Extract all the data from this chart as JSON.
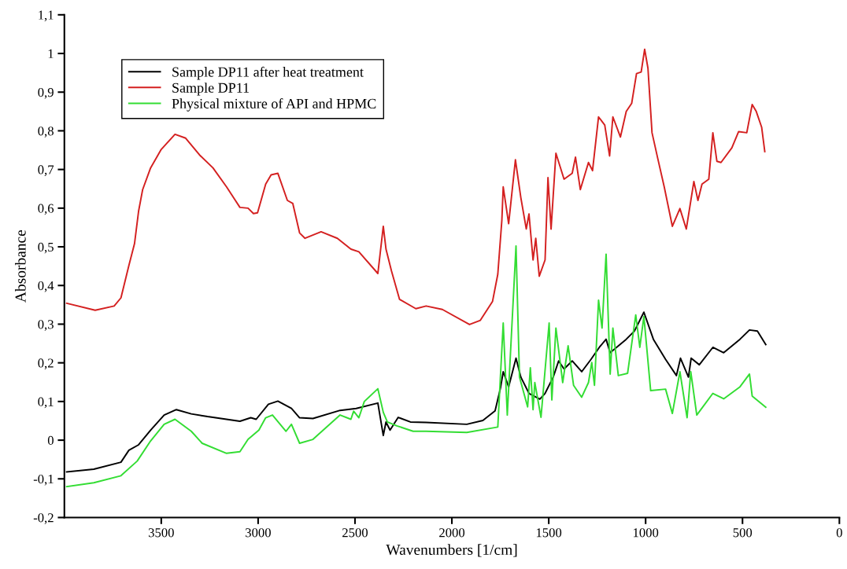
{
  "chart_data": {
    "type": "line",
    "xlabel": "Wavenumbers [1/cm]",
    "ylabel": "Absorbance",
    "xlim": [
      4000,
      0
    ],
    "xticks": [
      3500,
      3000,
      2500,
      2000,
      1500,
      1000,
      500,
      0
    ],
    "ylim": [
      -0.2,
      1.1
    ],
    "yticks": [
      {
        "value": -0.2,
        "label": "-0,2"
      },
      {
        "value": -0.1,
        "label": "-0,1"
      },
      0,
      {
        "value": 0.1,
        "label": "0,1"
      },
      {
        "value": 0.2,
        "label": "0,2"
      },
      {
        "value": 0.3,
        "label": "0,3"
      },
      {
        "value": 0.4,
        "label": "0,4"
      },
      {
        "value": 0.5,
        "label": "0,5"
      },
      {
        "value": 0.6,
        "label": "0,6"
      },
      {
        "value": 0.7,
        "label": "0,7"
      },
      {
        "value": 0.8,
        "label": "0,8"
      },
      {
        "value": 0.9,
        "label": "0,9"
      },
      1,
      {
        "value": 1.1,
        "label": "1,1"
      }
    ],
    "grid": false,
    "legend": "top left",
    "marker": "none",
    "line_style": "solid",
    "series": [
      {
        "name": "Sample DP11 after heat treatment",
        "color": "#000000",
        "x": [
          3988,
          3848,
          3708,
          3667,
          3617,
          3555,
          3485,
          3422,
          3345,
          3261,
          3094,
          3038,
          3010,
          2947,
          2898,
          2828,
          2786,
          2717,
          2577,
          2494,
          2382,
          2354,
          2340,
          2319,
          2277,
          2214,
          2133,
          1923,
          1840,
          1777,
          1749,
          1735,
          1707,
          1669,
          1644,
          1602,
          1546,
          1519,
          1477,
          1449,
          1421,
          1379,
          1330,
          1282,
          1239,
          1204,
          1183,
          1100,
          1058,
          1009,
          960,
          897,
          841,
          820,
          779,
          765,
          723,
          653,
          597,
          513,
          464,
          423,
          380
        ],
        "values": [
          -0.082,
          -0.075,
          -0.057,
          -0.026,
          -0.012,
          0.026,
          0.065,
          0.079,
          0.068,
          0.061,
          0.049,
          0.058,
          0.054,
          0.093,
          0.101,
          0.082,
          0.058,
          0.056,
          0.077,
          0.082,
          0.096,
          0.012,
          0.047,
          0.026,
          0.059,
          0.047,
          0.046,
          0.041,
          0.051,
          0.076,
          0.135,
          0.177,
          0.138,
          0.212,
          0.163,
          0.121,
          0.106,
          0.121,
          0.163,
          0.205,
          0.184,
          0.205,
          0.177,
          0.209,
          0.24,
          0.261,
          0.226,
          0.261,
          0.282,
          0.331,
          0.261,
          0.209,
          0.167,
          0.212,
          0.163,
          0.212,
          0.195,
          0.24,
          0.226,
          0.261,
          0.285,
          0.282,
          0.247
        ]
      },
      {
        "name": "Sample DP11",
        "color": "#d42020",
        "x": [
          3988,
          3841,
          3743,
          3708,
          3667,
          3638,
          3617,
          3596,
          3555,
          3500,
          3429,
          3374,
          3303,
          3233,
          3163,
          3094,
          3052,
          3024,
          3003,
          2961,
          2933,
          2898,
          2849,
          2821,
          2786,
          2758,
          2675,
          2591,
          2521,
          2480,
          2382,
          2354,
          2340,
          2312,
          2270,
          2186,
          2133,
          2049,
          1909,
          1853,
          1790,
          1763,
          1742,
          1735,
          1707,
          1672,
          1644,
          1616,
          1602,
          1581,
          1567,
          1549,
          1519,
          1504,
          1488,
          1463,
          1421,
          1379,
          1362,
          1337,
          1295,
          1274,
          1243,
          1211,
          1186,
          1169,
          1130,
          1100,
          1072,
          1047,
          1023,
          1005,
          988,
          967,
          939,
          904,
          862,
          823,
          790,
          751,
          730,
          709,
          674,
          653,
          632,
          611,
          555,
          520,
          478,
          450,
          429,
          401,
          385
        ],
        "values": [
          0.354,
          0.336,
          0.347,
          0.368,
          0.452,
          0.508,
          0.592,
          0.648,
          0.704,
          0.752,
          0.791,
          0.781,
          0.738,
          0.704,
          0.655,
          0.602,
          0.6,
          0.586,
          0.588,
          0.662,
          0.686,
          0.69,
          0.62,
          0.612,
          0.536,
          0.522,
          0.539,
          0.522,
          0.494,
          0.487,
          0.431,
          0.553,
          0.494,
          0.438,
          0.364,
          0.34,
          0.347,
          0.338,
          0.299,
          0.31,
          0.359,
          0.429,
          0.569,
          0.655,
          0.56,
          0.725,
          0.627,
          0.546,
          0.585,
          0.466,
          0.522,
          0.424,
          0.466,
          0.679,
          0.546,
          0.742,
          0.675,
          0.69,
          0.732,
          0.648,
          0.718,
          0.697,
          0.836,
          0.815,
          0.735,
          0.836,
          0.784,
          0.85,
          0.871,
          0.948,
          0.952,
          1.011,
          0.962,
          0.795,
          0.732,
          0.655,
          0.553,
          0.599,
          0.546,
          0.669,
          0.62,
          0.662,
          0.675,
          0.795,
          0.721,
          0.718,
          0.756,
          0.798,
          0.795,
          0.868,
          0.85,
          0.809,
          0.746
        ]
      },
      {
        "name": "Physical mixture of API and HPMC",
        "color": "#33dd33",
        "x": [
          3988,
          3848,
          3708,
          3624,
          3555,
          3485,
          3429,
          3345,
          3289,
          3163,
          3094,
          3052,
          2996,
          2961,
          2926,
          2856,
          2828,
          2786,
          2717,
          2577,
          2521,
          2507,
          2480,
          2452,
          2382,
          2354,
          2333,
          2284,
          2200,
          2133,
          1923,
          1763,
          1735,
          1714,
          1669,
          1651,
          1609,
          1595,
          1581,
          1572,
          1540,
          1498,
          1484,
          1463,
          1428,
          1400,
          1372,
          1330,
          1295,
          1278,
          1264,
          1243,
          1225,
          1204,
          1183,
          1169,
          1141,
          1093,
          1051,
          1030,
          1009,
          974,
          897,
          862,
          823,
          786,
          767,
          736,
          653,
          597,
          513,
          464,
          450,
          380
        ],
        "values": [
          -0.12,
          -0.11,
          -0.092,
          -0.054,
          -0.002,
          0.041,
          0.054,
          0.023,
          -0.008,
          -0.034,
          -0.03,
          0.002,
          0.026,
          0.058,
          0.065,
          0.023,
          0.041,
          -0.008,
          0.002,
          0.065,
          0.054,
          0.075,
          0.058,
          0.1,
          0.133,
          0.072,
          0.047,
          0.037,
          0.023,
          0.023,
          0.02,
          0.034,
          0.303,
          0.065,
          0.502,
          0.163,
          0.086,
          0.187,
          0.079,
          0.149,
          0.059,
          0.303,
          0.104,
          0.29,
          0.149,
          0.244,
          0.142,
          0.111,
          0.149,
          0.201,
          0.142,
          0.362,
          0.29,
          0.481,
          0.171,
          0.29,
          0.167,
          0.173,
          0.324,
          0.24,
          0.32,
          0.128,
          0.132,
          0.069,
          0.177,
          0.058,
          0.177,
          0.065,
          0.121,
          0.107,
          0.138,
          0.171,
          0.114,
          0.085
        ]
      }
    ]
  }
}
